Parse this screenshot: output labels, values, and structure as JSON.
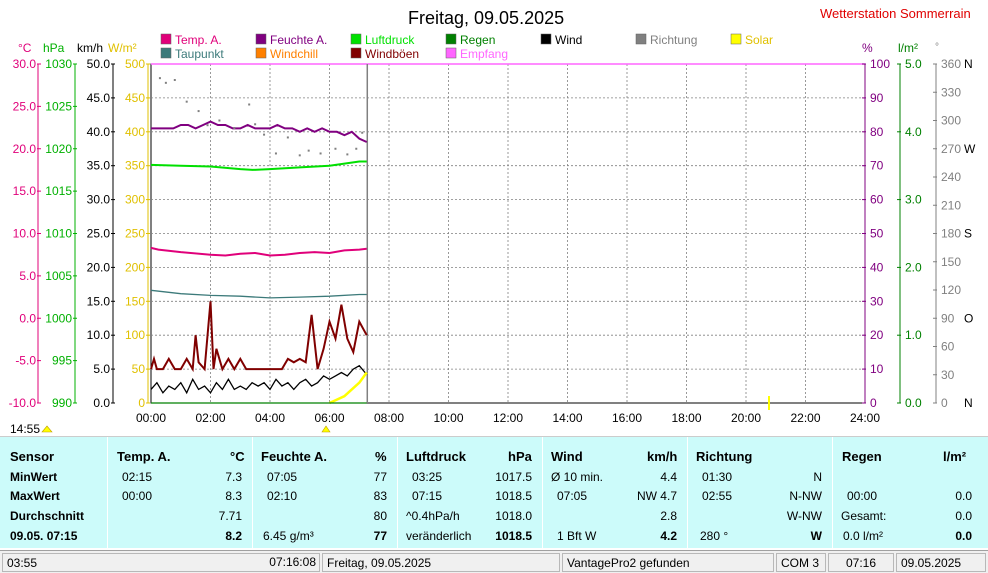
{
  "title": "Freitag, 09.05.2025",
  "station": "Wetterstation Sommerrain",
  "legend": [
    {
      "label": "Temp. A.",
      "color": "#e0007a"
    },
    {
      "label": "Feuchte A.",
      "color": "#800080"
    },
    {
      "label": "Luftdruck",
      "color": "#00e000"
    },
    {
      "label": "Regen",
      "color": "#008000"
    },
    {
      "label": "Wind",
      "color": "#000000"
    },
    {
      "label": "Richtung",
      "color": "#808080"
    },
    {
      "label": "Solar",
      "color": "#ffff00"
    },
    {
      "label": "Taupunkt",
      "color": "#3c7a7a"
    },
    {
      "label": "Windchill",
      "color": "#ff8000"
    },
    {
      "label": "Windböen",
      "color": "#800000"
    },
    {
      "label": "Empfang",
      "color": "#ff66ff"
    }
  ],
  "axes": {
    "temp": {
      "unit": "°C",
      "color": "#e0007a",
      "ticks": [
        "30.0",
        "25.0",
        "20.0",
        "15.0",
        "10.0",
        "5.0",
        "0.0",
        "-5.0",
        "-10.0"
      ]
    },
    "pressure": {
      "unit": "hPa",
      "color": "#00b000",
      "ticks": [
        "1030",
        "1025",
        "1020",
        "1015",
        "1010",
        "1005",
        "1000",
        "995",
        "990"
      ]
    },
    "wind": {
      "unit": "km/h",
      "color": "#000000",
      "ticks": [
        "50.0",
        "45.0",
        "40.0",
        "35.0",
        "30.0",
        "25.0",
        "20.0",
        "15.0",
        "10.0",
        "5.0",
        "0.0"
      ]
    },
    "solar": {
      "unit": "W/m²",
      "color": "#e0c000",
      "ticks": [
        "500",
        "450",
        "400",
        "350",
        "300",
        "250",
        "200",
        "150",
        "100",
        "50",
        "0"
      ]
    },
    "humidity": {
      "unit": "%",
      "color": "#800080",
      "ticks": [
        "100",
        "90",
        "80",
        "70",
        "60",
        "50",
        "40",
        "30",
        "20",
        "10",
        "0"
      ]
    },
    "rain": {
      "unit": "l/m²",
      "color": "#008000",
      "ticks": [
        "5.0",
        "4.0",
        "3.0",
        "2.0",
        "1.0",
        "0.0"
      ]
    },
    "direction": {
      "unit": "°",
      "color": "#808080",
      "ticks": [
        "360",
        "330",
        "300",
        "270",
        "240",
        "210",
        "180",
        "150",
        "120",
        "90",
        "60",
        "30",
        "0"
      ],
      "compass": [
        "N",
        "",
        "",
        "W",
        "",
        "",
        "S",
        "",
        "",
        "O",
        "",
        "",
        "N"
      ]
    },
    "time": [
      "00:00",
      "02:00",
      "04:00",
      "06:00",
      "08:00",
      "10:00",
      "12:00",
      "14:00",
      "16:00",
      "18:00",
      "20:00",
      "22:00",
      "24:00"
    ]
  },
  "sunrise_label": "14:55",
  "chart_data": {
    "type": "line",
    "title": "Freitag, 09.05.2025",
    "xlabel": "",
    "x_range": [
      "00:00",
      "24:00"
    ],
    "grid": true,
    "now_marker": "07:16",
    "series": [
      {
        "name": "Feuchte A.",
        "axis": "humidity",
        "color": "#800080",
        "x": [
          0,
          0.25,
          0.5,
          0.75,
          1,
          1.25,
          1.5,
          1.75,
          2,
          2.25,
          2.5,
          2.75,
          3,
          3.25,
          3.5,
          3.75,
          4,
          4.25,
          4.5,
          4.75,
          5,
          5.25,
          5.5,
          5.75,
          6,
          6.25,
          6.5,
          6.75,
          7,
          7.25
        ],
        "y": [
          81,
          81,
          81,
          81,
          82,
          82,
          81,
          82,
          83,
          82,
          82,
          81,
          81,
          82,
          81,
          81,
          81,
          82,
          81,
          81,
          80,
          81,
          80,
          81,
          80,
          80,
          79,
          80,
          78,
          77
        ]
      },
      {
        "name": "Luftdruck",
        "axis": "pressure",
        "color": "#00e000",
        "x": [
          0,
          1,
          2,
          3,
          3.42,
          4,
          5,
          6,
          7,
          7.25
        ],
        "y": [
          1018.1,
          1018.0,
          1017.9,
          1017.6,
          1017.5,
          1017.6,
          1017.8,
          1018.0,
          1018.5,
          1018.5
        ]
      },
      {
        "name": "Temp. A.",
        "axis": "temp",
        "color": "#e0007a",
        "x": [
          0,
          0.25,
          1,
          2,
          2.5,
          3,
          3.5,
          4,
          4.5,
          5,
          5.5,
          6,
          6.5,
          7,
          7.25
        ],
        "y": [
          8.3,
          8.1,
          7.8,
          7.5,
          7.4,
          7.6,
          7.7,
          7.4,
          7.5,
          7.7,
          7.8,
          7.7,
          8.0,
          8.1,
          8.2
        ]
      },
      {
        "name": "Taupunkt",
        "axis": "temp",
        "color": "#3c7a7a",
        "x": [
          0,
          1,
          2,
          3,
          4,
          5,
          6,
          7,
          7.25
        ],
        "y": [
          3.3,
          2.9,
          2.7,
          2.6,
          2.4,
          2.5,
          2.6,
          2.8,
          2.8
        ]
      },
      {
        "name": "Windböen",
        "axis": "wind",
        "color": "#800000",
        "x": [
          0,
          0.1,
          0.2,
          0.4,
          0.6,
          0.8,
          1.0,
          1.2,
          1.4,
          1.5,
          1.6,
          1.8,
          2.0,
          2.1,
          2.2,
          2.4,
          2.6,
          2.8,
          3.0,
          3.2,
          3.4,
          3.6,
          3.8,
          4.0,
          4.2,
          4.4,
          4.6,
          4.8,
          5.0,
          5.2,
          5.4,
          5.6,
          5.8,
          6.0,
          6.2,
          6.4,
          6.6,
          6.8,
          7.0,
          7.25
        ],
        "y": [
          5,
          6.5,
          5,
          5,
          6.5,
          5,
          5,
          6.5,
          5,
          10,
          6,
          5,
          15,
          5,
          8,
          5,
          6.5,
          5,
          6.5,
          5,
          5,
          5,
          5,
          5,
          5,
          5,
          6.5,
          6,
          6.5,
          6,
          13,
          5,
          8,
          12,
          9.5,
          14.5,
          9.5,
          7.5,
          12,
          10
        ]
      },
      {
        "name": "Wind",
        "axis": "wind",
        "color": "#000000",
        "x": [
          0,
          0.2,
          0.4,
          0.6,
          0.8,
          1.0,
          1.2,
          1.4,
          1.6,
          1.8,
          2.0,
          2.2,
          2.4,
          2.6,
          2.8,
          3.0,
          3.2,
          3.4,
          3.6,
          3.8,
          4.0,
          4.2,
          4.4,
          4.6,
          4.8,
          5.0,
          5.2,
          5.4,
          5.6,
          5.8,
          6.0,
          6.2,
          6.4,
          6.6,
          6.8,
          7.0,
          7.25
        ],
        "y": [
          2,
          3,
          1.5,
          2.5,
          2,
          3,
          1.5,
          3.5,
          2,
          2.5,
          1.5,
          3,
          2,
          3.5,
          2,
          2.5,
          2,
          3,
          2.5,
          3,
          2,
          3.5,
          2.5,
          3,
          2,
          3,
          3.5,
          2.5,
          3,
          4,
          3.5,
          4,
          4.5,
          4,
          5,
          5.5,
          4.2
        ]
      },
      {
        "name": "Solar",
        "axis": "solar",
        "color": "#ffff00",
        "x": [
          6,
          6.25,
          6.5,
          6.75,
          7,
          7.25
        ],
        "y": [
          0,
          5,
          10,
          20,
          30,
          45
        ]
      },
      {
        "name": "Regen",
        "axis": "rain",
        "color": "#008000",
        "x": [
          0,
          7.25
        ],
        "y": [
          0,
          0
        ]
      },
      {
        "name": "Richtung",
        "axis": "direction",
        "color": "#808080",
        "type": "scatter",
        "x": [
          0.3,
          0.5,
          0.8,
          1.2,
          1.6,
          1.9,
          2.3,
          2.8,
          3.3,
          3.5,
          3.8,
          4.2,
          4.6,
          5.0,
          5.3,
          5.7,
          6.2,
          6.6,
          6.9,
          7.1
        ],
        "y": [
          345,
          340,
          343,
          320,
          310,
          295,
          300,
          292,
          317,
          296,
          285,
          265,
          282,
          263,
          268,
          265,
          270,
          264,
          270,
          287
        ]
      }
    ]
  },
  "summary": {
    "sensor": {
      "header": "Sensor",
      "rows": [
        "MinWert",
        "MaxWert",
        "Durchschnitt",
        "09.05. 07:15"
      ]
    },
    "temp": {
      "header": "Temp. A.",
      "unit": "°C",
      "min_time": "02:15",
      "min_val": "7.3",
      "max_time": "00:00",
      "max_val": "8.3",
      "avg": "7.71",
      "cur": "8.2"
    },
    "humidity": {
      "header": "Feuchte A.",
      "unit": "%",
      "min_time": "07:05",
      "min_val": "77",
      "max_time": "02:10",
      "max_val": "83",
      "avg": "80",
      "cur_label": "6.45 g/m³",
      "cur": "77"
    },
    "pressure": {
      "header": "Luftdruck",
      "unit": "hPa",
      "min_time": "03:25",
      "min_val": "1017.5",
      "max_time": "07:15",
      "max_val": "1018.5",
      "trend_label": "^0.4hPa/h",
      "trend_val": "1018.0",
      "cur_label": "veränderlich",
      "cur": "1018.5"
    },
    "wind": {
      "header": "Wind",
      "unit": "km/h",
      "min_time": "Ø 10 min.",
      "min_val": "4.4",
      "max_time": "07:05",
      "max_val": "NW 4.7",
      "avg": "2.8",
      "cur_label": "1 Bft W",
      "cur": "4.2"
    },
    "direction": {
      "header": "Richtung",
      "min_time": "01:30",
      "min_val": "N",
      "max_time": "02:55",
      "max_val": "N-NW",
      "avg": "W-NW",
      "cur_label": "280 °",
      "cur": "W"
    },
    "rain": {
      "header": "Regen",
      "unit": "l/m²",
      "max_time": "00:00",
      "max_val": "0.0",
      "total_label": "Gesamt:",
      "total_val": "0.0",
      "cur_label": "0.0 l/m²",
      "cur": "0.0"
    }
  },
  "status": [
    "03:55",
    "07:16:08",
    "Freitag, 09.05.2025",
    "VantagePro2 gefunden",
    "COM 3",
    "07:16",
    "09.05.2025"
  ]
}
